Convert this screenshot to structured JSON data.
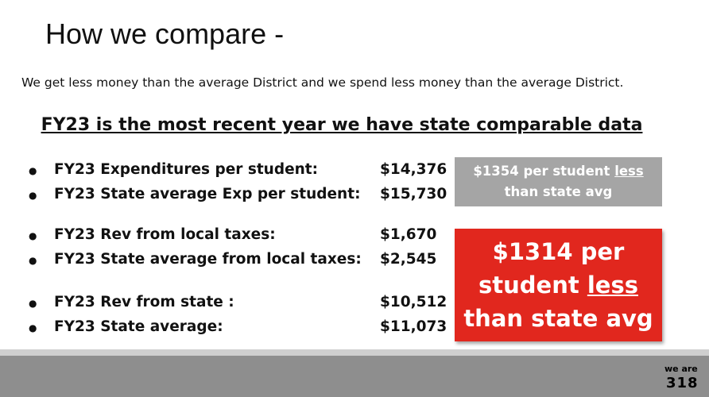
{
  "slide": {
    "title": "How we compare -",
    "subtitle": "We get less money than the average District and we spend less money than the average District.",
    "heading": "FY23 is the most recent year we have state comparable data",
    "groups": [
      {
        "items": [
          {
            "label": "FY23 Expenditures per student:",
            "value": "$14,376"
          },
          {
            "label": "FY23 State average Exp per student:",
            "value": "$15,730"
          }
        ]
      },
      {
        "items": [
          {
            "label": "FY23 Rev from local taxes:",
            "value": "$1,670"
          },
          {
            "label": "FY23 State average from local taxes:",
            "value": "$2,545"
          }
        ]
      },
      {
        "items": [
          {
            "label": "FY23 Rev from state :",
            "value": "$10,512"
          },
          {
            "label": "FY23 State average:",
            "value": "$11,073"
          }
        ]
      }
    ],
    "callouts": [
      {
        "lead": "$1354 per student",
        "emphasis": "less",
        "tail": "than state avg"
      },
      {
        "lead": "$1314 per student",
        "emphasis": "less",
        "tail": "than state avg"
      }
    ]
  },
  "logo": {
    "top": "we are",
    "bottom": "318"
  }
}
